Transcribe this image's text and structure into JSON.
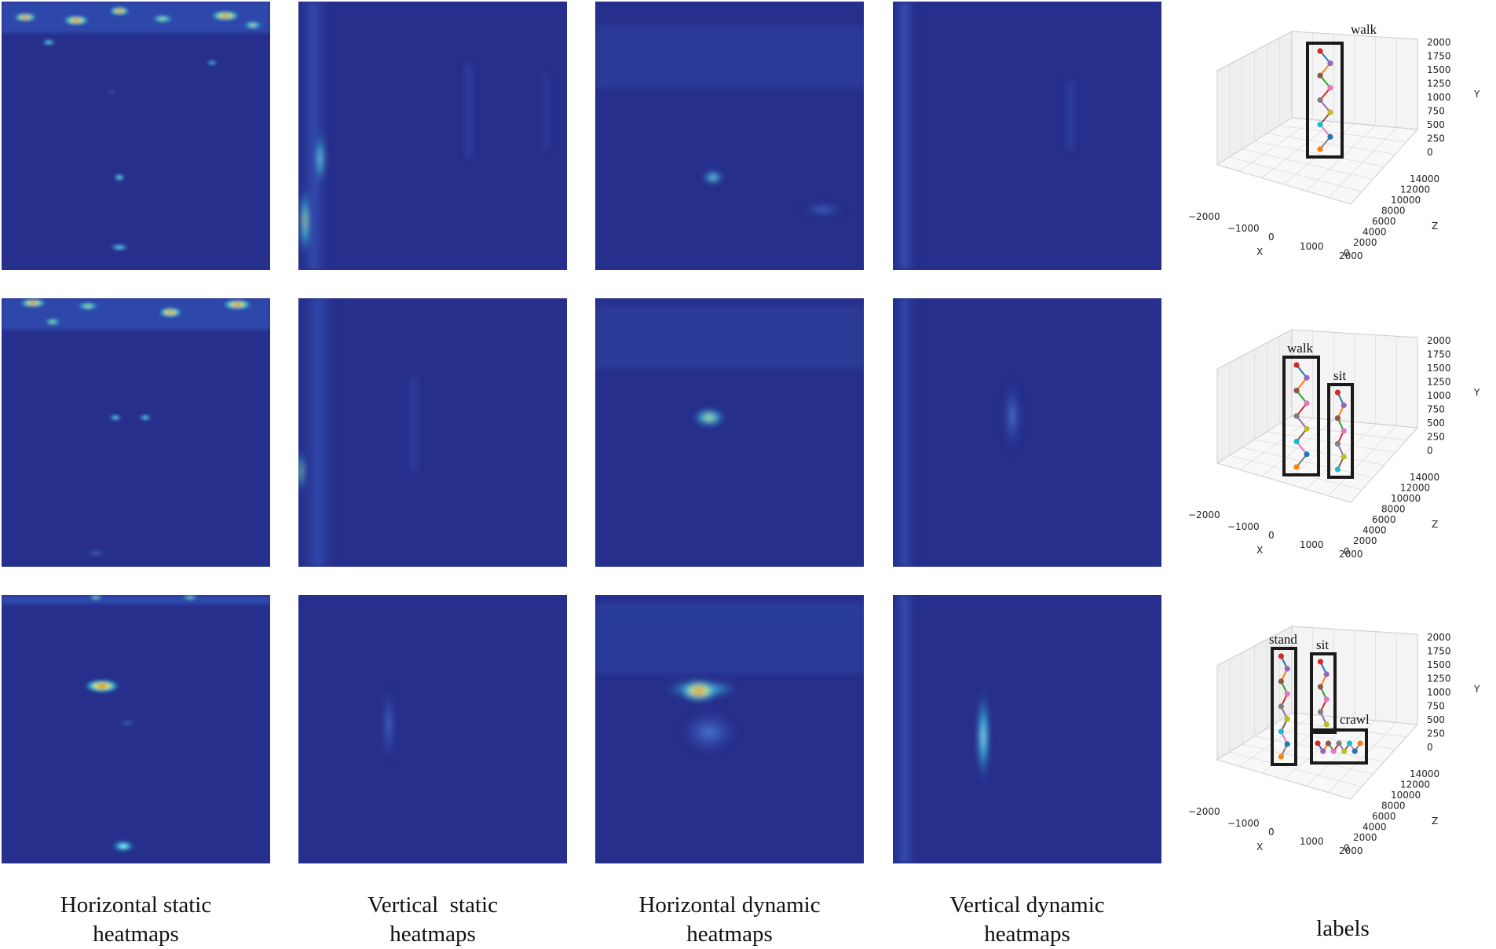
{
  "columns": [
    {
      "line1": "Horizontal static",
      "line2": "heatmaps"
    },
    {
      "line1": "Vertical  static",
      "line2": "heatmaps"
    },
    {
      "line1": "Horizontal dynamic",
      "line2": "heatmaps"
    },
    {
      "line1": "Vertical dynamic",
      "line2": "heatmaps"
    },
    {
      "line1": "labels",
      "line2": ""
    }
  ],
  "axes": {
    "x_label": "X",
    "y_label": "Y",
    "z_label": "Z",
    "x_ticks": [
      "−2000",
      "−1000",
      "0",
      "1000",
      "2000"
    ],
    "y_ticks": [
      "2000",
      "1750",
      "1500",
      "1250",
      "1000",
      "750",
      "500",
      "250",
      "0"
    ],
    "z_ticks": [
      "14000",
      "12000",
      "10000",
      "8000",
      "6000",
      "4000",
      "2000",
      "0"
    ]
  },
  "rows": [
    {
      "activities": [
        "walk"
      ]
    },
    {
      "activities": [
        "walk",
        "sit"
      ]
    },
    {
      "activities": [
        "stand",
        "sit",
        "crawl"
      ]
    }
  ],
  "colors": {
    "background": "#262f8c",
    "low": "#2a3a9e",
    "mid": "#3fd0e8",
    "high": "#f6e733",
    "peak": "#d81f1f"
  }
}
